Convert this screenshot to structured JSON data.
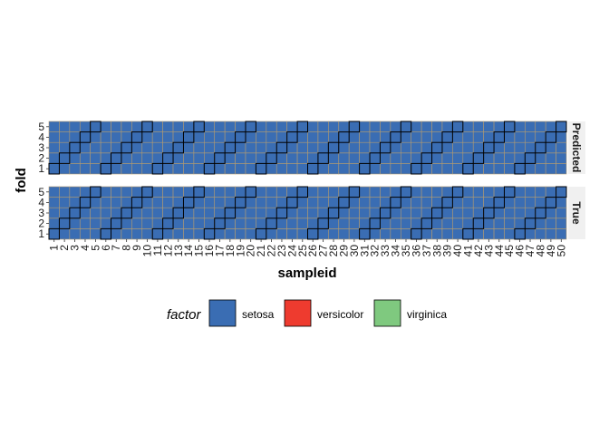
{
  "chart_data": {
    "type": "heatmap",
    "x": [
      1,
      2,
      3,
      4,
      5,
      6,
      7,
      8,
      9,
      10,
      11,
      12,
      13,
      14,
      15,
      16,
      17,
      18,
      19,
      20,
      21,
      22,
      23,
      24,
      25,
      26,
      27,
      28,
      29,
      30,
      31,
      32,
      33,
      34,
      35,
      36,
      37,
      38,
      39,
      40,
      41,
      42,
      43,
      44,
      45,
      46,
      47,
      48,
      49,
      50
    ],
    "y": [
      1,
      2,
      3,
      4,
      5
    ],
    "xlabel": "sampleid",
    "ylabel": "fold",
    "facets": [
      "Predicted",
      "True"
    ],
    "cell_factor": "setosa",
    "highlight_rule": "fold = ((sampleid - 1) mod 5) + 1",
    "highlighted_cells": [
      [
        1,
        1
      ],
      [
        2,
        2
      ],
      [
        3,
        3
      ],
      [
        4,
        4
      ],
      [
        5,
        5
      ],
      [
        6,
        1
      ],
      [
        7,
        2
      ],
      [
        8,
        3
      ],
      [
        9,
        4
      ],
      [
        10,
        5
      ],
      [
        11,
        1
      ],
      [
        12,
        2
      ],
      [
        13,
        3
      ],
      [
        14,
        4
      ],
      [
        15,
        5
      ],
      [
        16,
        1
      ],
      [
        17,
        2
      ],
      [
        18,
        3
      ],
      [
        19,
        4
      ],
      [
        20,
        5
      ],
      [
        21,
        1
      ],
      [
        22,
        2
      ],
      [
        23,
        3
      ],
      [
        24,
        4
      ],
      [
        25,
        5
      ],
      [
        26,
        1
      ],
      [
        27,
        2
      ],
      [
        28,
        3
      ],
      [
        29,
        4
      ],
      [
        30,
        5
      ],
      [
        31,
        1
      ],
      [
        32,
        2
      ],
      [
        33,
        3
      ],
      [
        34,
        4
      ],
      [
        35,
        5
      ],
      [
        36,
        1
      ],
      [
        37,
        2
      ],
      [
        38,
        3
      ],
      [
        39,
        4
      ],
      [
        40,
        5
      ],
      [
        41,
        1
      ],
      [
        42,
        2
      ],
      [
        43,
        3
      ],
      [
        44,
        4
      ],
      [
        45,
        5
      ],
      [
        46,
        1
      ],
      [
        47,
        2
      ],
      [
        48,
        3
      ],
      [
        49,
        4
      ],
      [
        50,
        5
      ]
    ],
    "legend": {
      "title": "factor",
      "position": "bottom",
      "entries": [
        {
          "label": "setosa",
          "color": "#3a6db3"
        },
        {
          "label": "versicolor",
          "color": "#ee3b2f"
        },
        {
          "label": "virginica",
          "color": "#7fc97f"
        }
      ]
    },
    "grid": true
  },
  "colors": {
    "grid": "#b39b70",
    "highlight_stroke": "#000000",
    "strip_bg": "#f0f0f0"
  }
}
